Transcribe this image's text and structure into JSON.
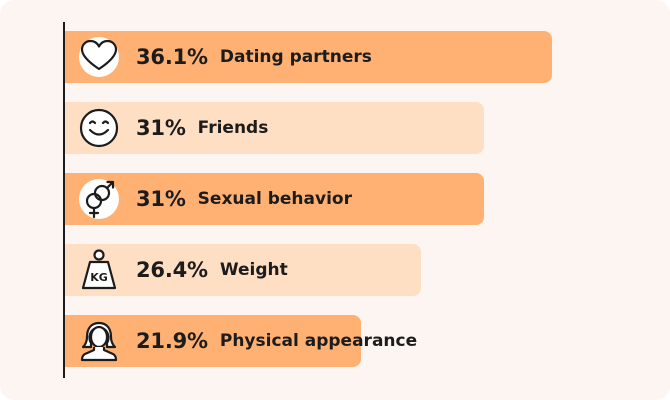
{
  "chart_data": {
    "type": "bar",
    "orientation": "horizontal",
    "xlim": [
      0,
      42
    ],
    "categories": [
      "Dating partners",
      "Friends",
      "Sexual behavior",
      "Weight",
      "Physical appearance"
    ],
    "values": [
      36.1,
      31,
      31,
      26.4,
      21.9
    ],
    "value_labels": [
      "36.1%",
      "31%",
      "31%",
      "26.4%",
      "21.9%"
    ],
    "icons": [
      "heart-icon",
      "smiley-icon",
      "gender-symbols-icon",
      "kettlebell-weight-icon",
      "person-bust-icon"
    ],
    "bar_colors": [
      "#ffb173",
      "#ffdfc4",
      "#ffb173",
      "#ffdfc4",
      "#ffb173"
    ]
  },
  "colors": {
    "background": "#fdf5f1",
    "accent": "#ffb173",
    "accent_light": "#ffdfc4",
    "text": "#1c1c1c"
  }
}
